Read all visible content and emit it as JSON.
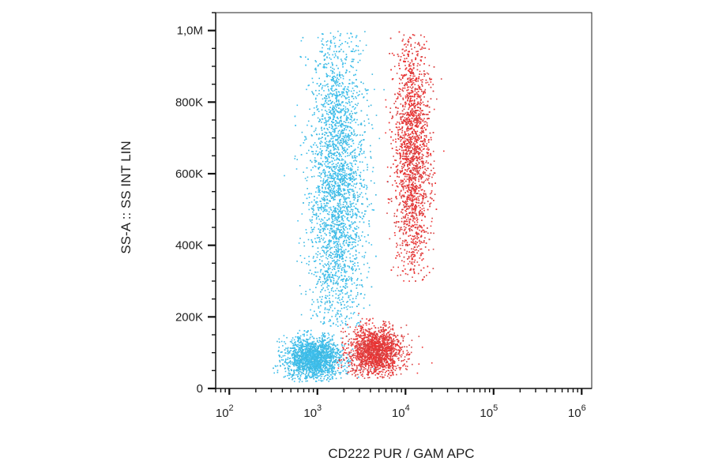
{
  "chart_data": {
    "type": "scatter",
    "title": "",
    "xlabel": "CD222 PUR / GAM APC",
    "ylabel": "SS-A :: SS INT LIN",
    "x_scale": "log",
    "xlim": [
      70,
      1300000
    ],
    "ylim": [
      0,
      1050000
    ],
    "x_ticks": [
      {
        "value": 100,
        "base": "10",
        "exp": "2"
      },
      {
        "value": 1000,
        "base": "10",
        "exp": "3"
      },
      {
        "value": 10000,
        "base": "10",
        "exp": "4"
      },
      {
        "value": 100000,
        "base": "10",
        "exp": "5"
      },
      {
        "value": 1000000,
        "base": "10",
        "exp": "6"
      }
    ],
    "y_ticks": [
      {
        "value": 0,
        "label": "0"
      },
      {
        "value": 200000,
        "label": "200K"
      },
      {
        "value": 400000,
        "label": "400K"
      },
      {
        "value": 600000,
        "label": "600K"
      },
      {
        "value": 800000,
        "label": "800K"
      },
      {
        "value": 1000000,
        "label": "1,0M"
      }
    ],
    "grid": false,
    "series": [
      {
        "color": "#3fb8e0",
        "color_dense": "#3cc0f0",
        "clusters": [
          {
            "x_log_center": 3.22,
            "x_log_sd": 0.16,
            "y_center": 560000,
            "y_sd": 230000,
            "y_range": [
              170000,
              1000000
            ],
            "n": 3600
          },
          {
            "x_log_center": 2.95,
            "x_log_sd": 0.16,
            "y_center": 85000,
            "y_sd": 30000,
            "y_range": [
              20000,
              170000
            ],
            "n": 2200
          }
        ]
      },
      {
        "color": "#d84040",
        "color_dense": "#ee3030",
        "clusters": [
          {
            "x_log_center": 4.07,
            "x_log_sd": 0.1,
            "y_center": 650000,
            "y_sd": 180000,
            "y_range": [
              300000,
              1000000
            ],
            "n": 2600
          },
          {
            "x_log_center": 3.65,
            "x_log_sd": 0.15,
            "y_center": 105000,
            "y_sd": 35000,
            "y_range": [
              30000,
              230000
            ],
            "n": 1700
          }
        ]
      }
    ]
  }
}
